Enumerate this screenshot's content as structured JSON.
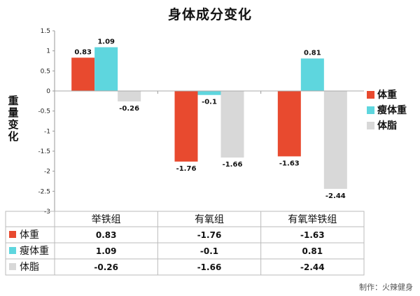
{
  "chart_data": {
    "type": "bar",
    "title": "身体成分变化",
    "ylabel": "重量变化",
    "xlabel": "",
    "ylim": [
      -3,
      1.5
    ],
    "yticks": [
      "1.5",
      "1",
      "0.5",
      "0",
      "-0.5",
      "-1",
      "-1.5",
      "-2",
      "-2.5",
      "-3"
    ],
    "categories": [
      "举铁组",
      "有氧组",
      "有氧举铁组"
    ],
    "series": [
      {
        "name": "体重",
        "color": "#e84a2f",
        "values": [
          0.83,
          -1.76,
          -1.63
        ],
        "labels": [
          "0.83",
          "-1.76",
          "-1.63"
        ]
      },
      {
        "name": "瘦体重",
        "color": "#5ed6de",
        "values": [
          1.09,
          -0.1,
          0.81
        ],
        "labels": [
          "1.09",
          "-0.1",
          "0.81"
        ]
      },
      {
        "name": "体脂",
        "color": "#d8d8d8",
        "values": [
          -0.26,
          -1.66,
          -2.44
        ],
        "labels": [
          "-0.26",
          "-1.66",
          "-2.44"
        ]
      }
    ],
    "legend_position": "right",
    "grid": false,
    "has_data_table": true
  },
  "footer": {
    "credit": "制作：火辣健身"
  }
}
